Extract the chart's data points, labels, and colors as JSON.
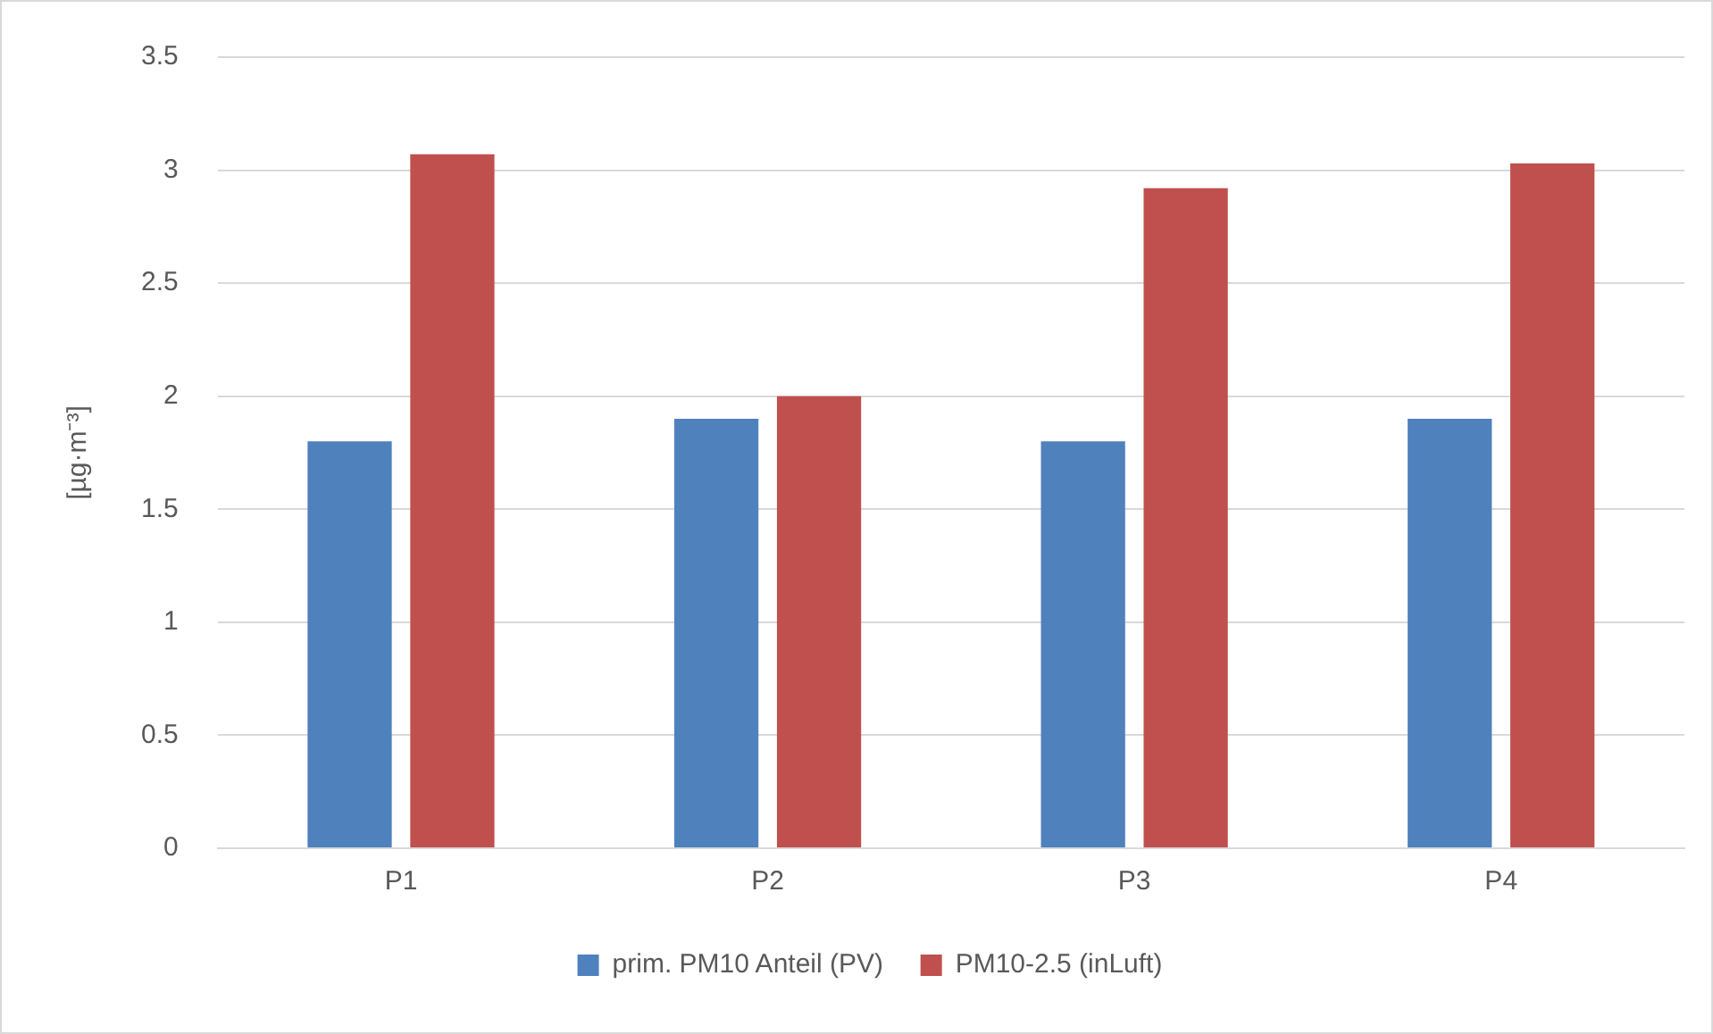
{
  "chart_data": {
    "type": "bar",
    "ylabel": "[µg·m⁻³]",
    "categories": [
      "P1",
      "P2",
      "P3",
      "P4"
    ],
    "series": [
      {
        "name": "prim. PM10 Anteil (PV)",
        "color": "#4f81bd",
        "values": [
          1.8,
          1.9,
          1.8,
          1.9
        ]
      },
      {
        "name": "PM10-2.5 (inLuft)",
        "color": "#c0504d",
        "values": [
          3.07,
          2.0,
          2.92,
          3.03
        ]
      }
    ],
    "ylim": [
      0,
      3.5
    ],
    "yticks": [
      0,
      0.5,
      1,
      1.5,
      2,
      2.5,
      3,
      3.5
    ],
    "grid": "y",
    "legend": "bottom"
  }
}
